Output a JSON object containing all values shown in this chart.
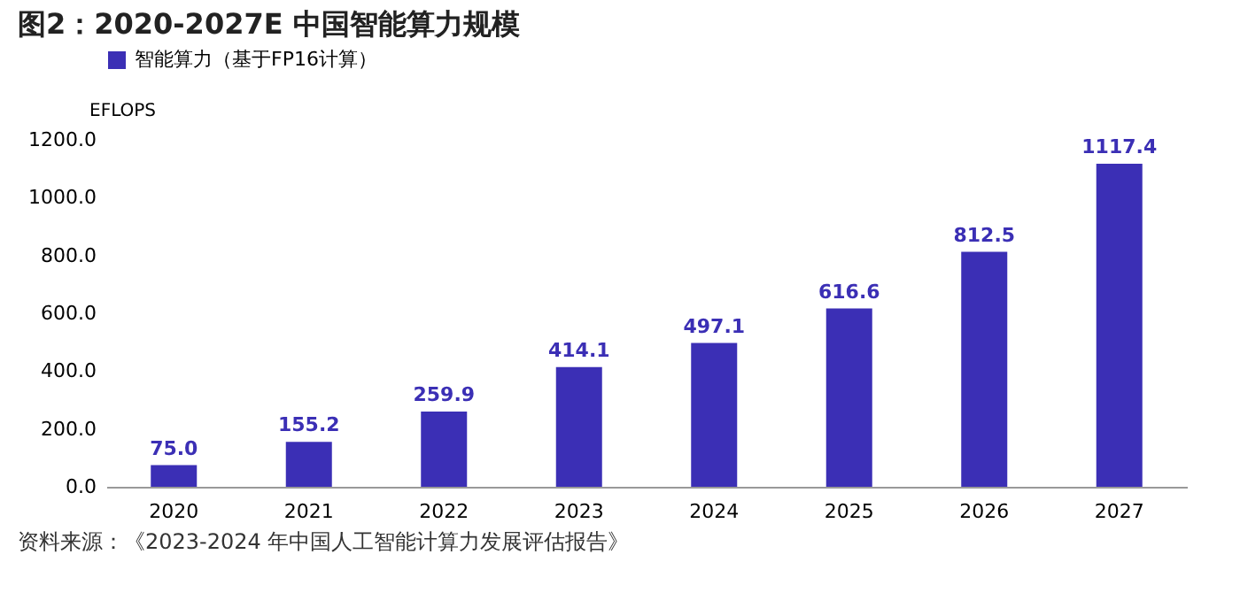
{
  "chart_data": {
    "type": "bar",
    "title": "图2：2020-2027E 中国智能算力规模",
    "ylabel": "EFLOPS",
    "categories": [
      "2020",
      "2021",
      "2022",
      "2023",
      "2024",
      "2025",
      "2026",
      "2027"
    ],
    "series": [
      {
        "name": "智能算力（基于FP16计算）",
        "color": "#3b2fb5",
        "values": [
          75.0,
          155.2,
          259.9,
          414.1,
          497.1,
          616.6,
          812.5,
          1117.4
        ],
        "value_labels": [
          "75.0",
          "155.2",
          "259.9",
          "414.1",
          "497.1",
          "616.6",
          "812.5",
          "1117.4"
        ]
      }
    ],
    "ylim": [
      0,
      1200
    ],
    "yticks": [
      {
        "value": 0,
        "label": "0.0"
      },
      {
        "value": 200,
        "label": "200.0"
      },
      {
        "value": 400,
        "label": "400.0"
      },
      {
        "value": 600,
        "label": "600.0"
      },
      {
        "value": 800,
        "label": "800.0"
      },
      {
        "value": 1000,
        "label": "1000.0"
      },
      {
        "value": 1200,
        "label": "1200.0"
      }
    ],
    "grid": false,
    "legend": "top",
    "annotations": [
      "资料来源：《2023-2024 年中国人工智能计算力发展评估报告》"
    ]
  }
}
